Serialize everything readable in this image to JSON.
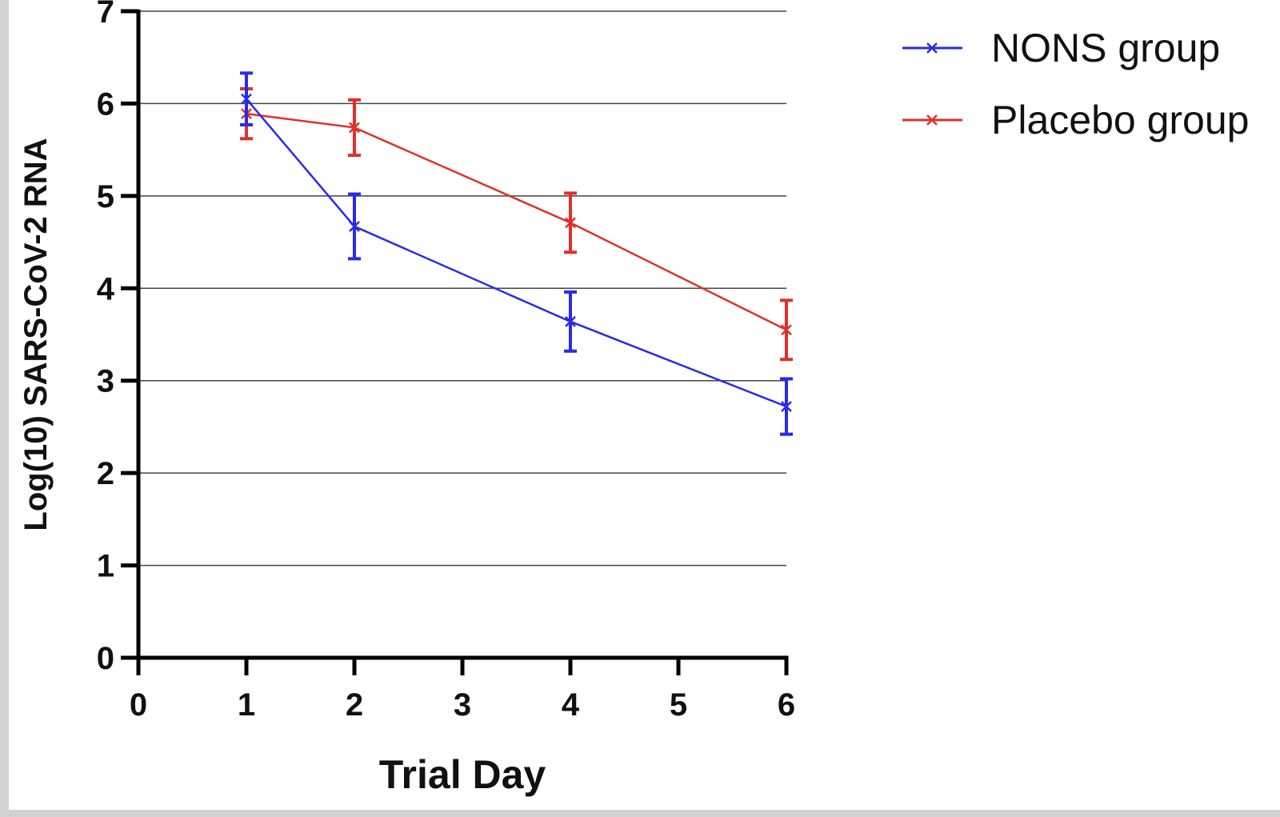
{
  "chart_data": {
    "type": "line",
    "title": "",
    "xlabel": "Trial Day",
    "ylabel": "Log(10) SARS-CoV-2 RNA",
    "xlim": [
      0,
      6
    ],
    "ylim": [
      0,
      7
    ],
    "xticks": [
      "0",
      "1",
      "2",
      "3",
      "4",
      "5",
      "6"
    ],
    "yticks": [
      "0",
      "1",
      "2",
      "3",
      "4",
      "5",
      "6",
      "7"
    ],
    "grid": "horizontal",
    "legend_position": "top-right, outside plot",
    "series": [
      {
        "name": "NONS group",
        "color": "#2a2ae8",
        "marker": "x",
        "x": [
          1,
          2,
          4,
          6
        ],
        "y": [
          6.05,
          4.67,
          3.64,
          2.72
        ],
        "error": [
          0.28,
          0.35,
          0.32,
          0.3
        ]
      },
      {
        "name": "Placebo group",
        "color": "#e0302a",
        "marker": "x",
        "x": [
          1,
          2,
          4,
          6
        ],
        "y": [
          5.89,
          5.74,
          4.71,
          3.55
        ],
        "error": [
          0.27,
          0.3,
          0.32,
          0.32
        ]
      }
    ]
  }
}
